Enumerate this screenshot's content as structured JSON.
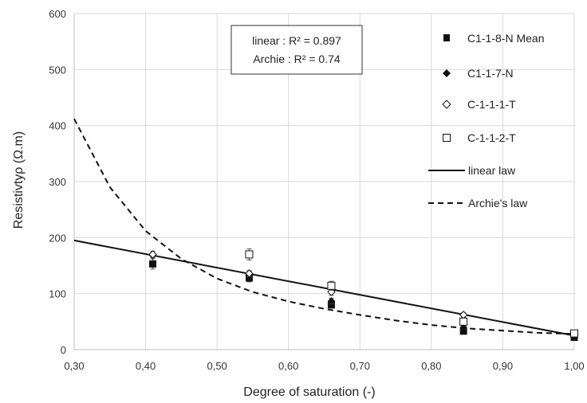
{
  "chart_data": {
    "type": "scatter",
    "xlabel": "Degree of saturation (-)",
    "ylabel": "Resistivtyρ  (Ω.m)",
    "xlim": [
      0.3,
      1.0
    ],
    "ylim": [
      0,
      600
    ],
    "xticks": [
      0.3,
      0.4,
      0.5,
      0.6,
      0.7,
      0.8,
      0.9,
      1.0
    ],
    "xtick_labels": [
      "0,30",
      "0,40",
      "0,50",
      "0,60",
      "0,70",
      "0,80",
      "0,90",
      "1,00"
    ],
    "yticks": [
      0,
      100,
      200,
      300,
      400,
      500,
      600
    ],
    "ytick_labels": [
      "0",
      "100",
      "200",
      "300",
      "400",
      "500",
      "600"
    ],
    "grid": true,
    "legend_position": "right",
    "annotation": {
      "linear_label": "linear : R² = 0.897",
      "archie_label": "Archie : R² = 0.74"
    },
    "series": [
      {
        "name": "C1-1-8-N Mean",
        "marker": "filled-square",
        "x": [
          0.41,
          0.545,
          0.66,
          0.845,
          1.0
        ],
        "y": [
          153,
          128,
          80,
          33,
          22
        ],
        "err": [
          9,
          7,
          6,
          3,
          2
        ]
      },
      {
        "name": "C1-1-7-N",
        "marker": "filled-diamond",
        "x": [
          0.41,
          0.545,
          0.66,
          0.845,
          1.0
        ],
        "y": [
          168,
          135,
          87,
          40,
          24
        ],
        "err": [
          6,
          5,
          5,
          3,
          2
        ]
      },
      {
        "name": "C-1-1-1-T",
        "marker": "open-diamond",
        "x": [
          0.41,
          0.545,
          0.66,
          0.845,
          1.0
        ],
        "y": [
          170,
          136,
          103,
          62,
          27
        ],
        "err": [
          6,
          5,
          6,
          4,
          2
        ]
      },
      {
        "name": "C-1-1-2-T",
        "marker": "open-square",
        "x": [
          0.545,
          0.66,
          0.845,
          1.0
        ],
        "y": [
          170,
          114,
          50,
          29
        ],
        "err": [
          10,
          8,
          5,
          3
        ]
      },
      {
        "name": "linear law",
        "style": "solid-line",
        "x": [
          0.3,
          1.0
        ],
        "y": [
          195,
          25
        ]
      },
      {
        "name": "Archie's law",
        "style": "dashed-line",
        "x": [
          0.3,
          0.35,
          0.4,
          0.45,
          0.5,
          0.55,
          0.6,
          0.65,
          0.7,
          0.75,
          0.8,
          0.85,
          0.9,
          0.95,
          1.0
        ],
        "y": [
          412,
          290,
          212,
          162,
          127,
          103,
          86,
          73,
          62,
          52,
          44,
          38,
          34,
          30,
          28
        ]
      }
    ]
  }
}
